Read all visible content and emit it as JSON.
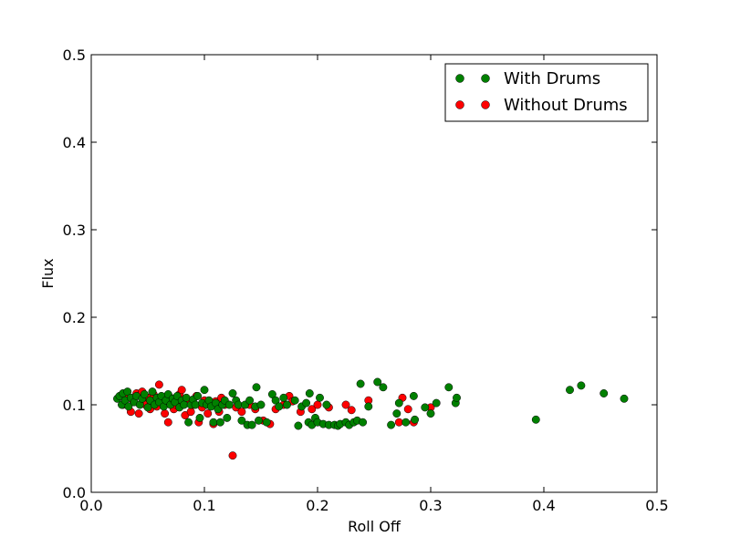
{
  "chart_data": {
    "type": "scatter",
    "title": "",
    "xlabel": "Roll Off",
    "ylabel": "Flux",
    "xlim": [
      0.0,
      0.5
    ],
    "ylim": [
      0.0,
      0.5
    ],
    "x_ticks": [
      0.0,
      0.1,
      0.2,
      0.3,
      0.4,
      0.5
    ],
    "y_ticks": [
      0.0,
      0.1,
      0.2,
      0.3,
      0.4,
      0.5
    ],
    "x_tick_labels": [
      "0.0",
      "0.1",
      "0.2",
      "0.3",
      "0.4",
      "0.5"
    ],
    "y_tick_labels": [
      "0.0",
      "0.1",
      "0.2",
      "0.3",
      "0.4",
      "0.5"
    ],
    "grid": false,
    "legend": {
      "position": "top-right",
      "entries": [
        "With Drums",
        "Without Drums"
      ]
    },
    "series": [
      {
        "name": "Without Drums",
        "color": "#ff0000",
        "points": [
          [
            0.028,
            0.1
          ],
          [
            0.031,
            0.11
          ],
          [
            0.035,
            0.092
          ],
          [
            0.037,
            0.105
          ],
          [
            0.04,
            0.113
          ],
          [
            0.042,
            0.09
          ],
          [
            0.045,
            0.115
          ],
          [
            0.048,
            0.1
          ],
          [
            0.05,
            0.108
          ],
          [
            0.052,
            0.095
          ],
          [
            0.055,
            0.112
          ],
          [
            0.058,
            0.098
          ],
          [
            0.06,
            0.123
          ],
          [
            0.062,
            0.105
          ],
          [
            0.065,
            0.09
          ],
          [
            0.068,
            0.08
          ],
          [
            0.07,
            0.108
          ],
          [
            0.073,
            0.095
          ],
          [
            0.075,
            0.1
          ],
          [
            0.078,
            0.112
          ],
          [
            0.08,
            0.117
          ],
          [
            0.083,
            0.088
          ],
          [
            0.085,
            0.105
          ],
          [
            0.088,
            0.092
          ],
          [
            0.09,
            0.1
          ],
          [
            0.093,
            0.11
          ],
          [
            0.095,
            0.08
          ],
          [
            0.098,
            0.097
          ],
          [
            0.1,
            0.105
          ],
          [
            0.103,
            0.09
          ],
          [
            0.105,
            0.1
          ],
          [
            0.108,
            0.078
          ],
          [
            0.11,
            0.104
          ],
          [
            0.113,
            0.092
          ],
          [
            0.115,
            0.108
          ],
          [
            0.118,
            0.1
          ],
          [
            0.125,
            0.042
          ],
          [
            0.128,
            0.097
          ],
          [
            0.133,
            0.092
          ],
          [
            0.14,
            0.1
          ],
          [
            0.145,
            0.095
          ],
          [
            0.152,
            0.082
          ],
          [
            0.158,
            0.078
          ],
          [
            0.163,
            0.095
          ],
          [
            0.17,
            0.1
          ],
          [
            0.175,
            0.11
          ],
          [
            0.178,
            0.104
          ],
          [
            0.185,
            0.092
          ],
          [
            0.195,
            0.095
          ],
          [
            0.2,
            0.1
          ],
          [
            0.21,
            0.097
          ],
          [
            0.225,
            0.1
          ],
          [
            0.23,
            0.094
          ],
          [
            0.245,
            0.105
          ],
          [
            0.272,
            0.08
          ],
          [
            0.275,
            0.108
          ],
          [
            0.28,
            0.095
          ],
          [
            0.285,
            0.08
          ],
          [
            0.3,
            0.097
          ]
        ]
      },
      {
        "name": "With Drums",
        "color": "#008000",
        "points": [
          [
            0.023,
            0.107
          ],
          [
            0.025,
            0.11
          ],
          [
            0.027,
            0.1
          ],
          [
            0.028,
            0.113
          ],
          [
            0.03,
            0.105
          ],
          [
            0.032,
            0.115
          ],
          [
            0.033,
            0.098
          ],
          [
            0.035,
            0.108
          ],
          [
            0.038,
            0.103
          ],
          [
            0.04,
            0.11
          ],
          [
            0.043,
            0.1
          ],
          [
            0.045,
            0.107
          ],
          [
            0.047,
            0.112
          ],
          [
            0.05,
            0.097
          ],
          [
            0.052,
            0.105
          ],
          [
            0.054,
            0.115
          ],
          [
            0.056,
            0.1
          ],
          [
            0.058,
            0.108
          ],
          [
            0.06,
            0.103
          ],
          [
            0.062,
            0.11
          ],
          [
            0.064,
            0.098
          ],
          [
            0.066,
            0.105
          ],
          [
            0.068,
            0.112
          ],
          [
            0.07,
            0.1
          ],
          [
            0.072,
            0.107
          ],
          [
            0.074,
            0.103
          ],
          [
            0.076,
            0.11
          ],
          [
            0.078,
            0.097
          ],
          [
            0.08,
            0.105
          ],
          [
            0.082,
            0.1
          ],
          [
            0.084,
            0.108
          ],
          [
            0.086,
            0.08
          ],
          [
            0.088,
            0.1
          ],
          [
            0.09,
            0.106
          ],
          [
            0.092,
            0.1
          ],
          [
            0.094,
            0.11
          ],
          [
            0.096,
            0.085
          ],
          [
            0.098,
            0.102
          ],
          [
            0.1,
            0.117
          ],
          [
            0.102,
            0.1
          ],
          [
            0.104,
            0.105
          ],
          [
            0.106,
            0.098
          ],
          [
            0.108,
            0.08
          ],
          [
            0.11,
            0.102
          ],
          [
            0.112,
            0.095
          ],
          [
            0.114,
            0.08
          ],
          [
            0.116,
            0.1
          ],
          [
            0.118,
            0.105
          ],
          [
            0.12,
            0.085
          ],
          [
            0.122,
            0.1
          ],
          [
            0.125,
            0.113
          ],
          [
            0.128,
            0.105
          ],
          [
            0.13,
            0.1
          ],
          [
            0.133,
            0.082
          ],
          [
            0.136,
            0.1
          ],
          [
            0.138,
            0.077
          ],
          [
            0.14,
            0.105
          ],
          [
            0.142,
            0.077
          ],
          [
            0.145,
            0.098
          ],
          [
            0.146,
            0.12
          ],
          [
            0.148,
            0.082
          ],
          [
            0.15,
            0.1
          ],
          [
            0.155,
            0.08
          ],
          [
            0.16,
            0.112
          ],
          [
            0.163,
            0.105
          ],
          [
            0.166,
            0.098
          ],
          [
            0.17,
            0.108
          ],
          [
            0.173,
            0.1
          ],
          [
            0.18,
            0.105
          ],
          [
            0.183,
            0.076
          ],
          [
            0.186,
            0.098
          ],
          [
            0.19,
            0.102
          ],
          [
            0.192,
            0.08
          ],
          [
            0.193,
            0.113
          ],
          [
            0.195,
            0.077
          ],
          [
            0.198,
            0.085
          ],
          [
            0.2,
            0.08
          ],
          [
            0.202,
            0.108
          ],
          [
            0.205,
            0.078
          ],
          [
            0.208,
            0.1
          ],
          [
            0.21,
            0.077
          ],
          [
            0.215,
            0.077
          ],
          [
            0.218,
            0.076
          ],
          [
            0.22,
            0.078
          ],
          [
            0.225,
            0.08
          ],
          [
            0.228,
            0.077
          ],
          [
            0.232,
            0.08
          ],
          [
            0.235,
            0.082
          ],
          [
            0.238,
            0.124
          ],
          [
            0.24,
            0.08
          ],
          [
            0.245,
            0.098
          ],
          [
            0.253,
            0.126
          ],
          [
            0.258,
            0.12
          ],
          [
            0.265,
            0.077
          ],
          [
            0.27,
            0.09
          ],
          [
            0.272,
            0.102
          ],
          [
            0.278,
            0.08
          ],
          [
            0.285,
            0.11
          ],
          [
            0.286,
            0.083
          ],
          [
            0.295,
            0.097
          ],
          [
            0.3,
            0.09
          ],
          [
            0.305,
            0.102
          ],
          [
            0.316,
            0.12
          ],
          [
            0.322,
            0.102
          ],
          [
            0.323,
            0.108
          ],
          [
            0.393,
            0.083
          ],
          [
            0.423,
            0.117
          ],
          [
            0.433,
            0.122
          ],
          [
            0.453,
            0.113
          ],
          [
            0.471,
            0.107
          ]
        ]
      }
    ]
  }
}
